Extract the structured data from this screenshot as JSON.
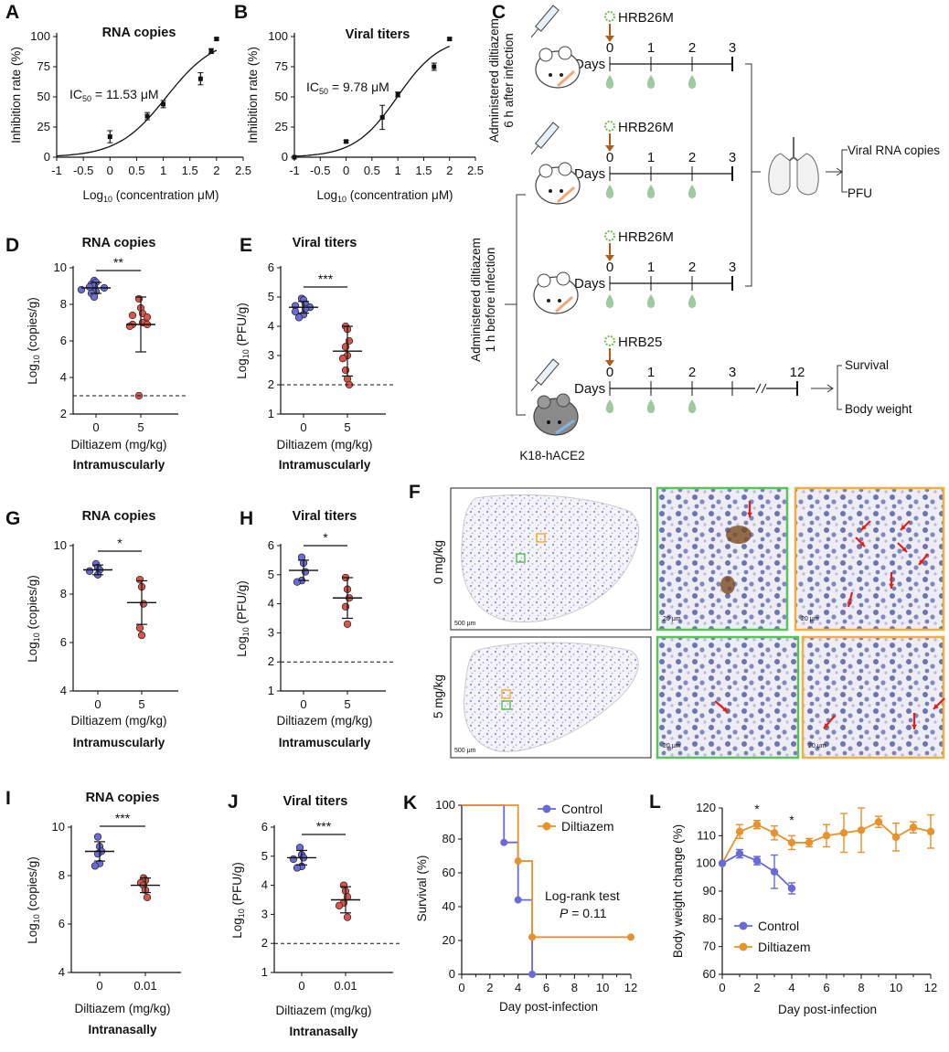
{
  "colors": {
    "blue": "#6a6ad8",
    "red": "#d9544a",
    "orange": "#e8922c",
    "virus_green": "#6cbf4e",
    "strain_gold": "#c4900c",
    "strain_teal": "#3bb0c8",
    "arrow_brown": "#b05a1e",
    "drop_green": "#9fcaa0",
    "frame_green": "#5cc25c",
    "frame_orange": "#f0b040"
  },
  "panel_labels": {
    "A": "A",
    "B": "B",
    "C": "C",
    "D": "D",
    "E": "E",
    "F": "F",
    "G": "G",
    "H": "H",
    "I": "I",
    "J": "J",
    "K": "K",
    "L": "L"
  },
  "chart_data": [
    {
      "id": "A",
      "type": "scatter",
      "title": "RNA copies",
      "ylabel": "Inhibition rate (%)",
      "xlabel": "Log10 (concentration μM)",
      "ylim": [
        0,
        100
      ],
      "xlim": [
        -1,
        2.5
      ],
      "xticks": [
        "-1",
        "-0.5",
        "0",
        "0.5",
        "1",
        "1.5",
        "2",
        "2.5"
      ],
      "yticks": [
        "0",
        "25",
        "50",
        "75",
        "100"
      ],
      "ic50_label": "IC50 = 11.53 μM",
      "points": [
        {
          "x": 0,
          "y": 17,
          "err": 5
        },
        {
          "x": 0.7,
          "y": 34,
          "err": 3
        },
        {
          "x": 1.0,
          "y": 44,
          "err": 3
        },
        {
          "x": 1.7,
          "y": 65,
          "err": 5
        },
        {
          "x": 1.9,
          "y": 88,
          "err": 2
        },
        {
          "x": 2.0,
          "y": 98,
          "err": 1
        }
      ]
    },
    {
      "id": "B",
      "type": "scatter",
      "title": "Viral titers",
      "ylabel": "Inhibition rate (%)",
      "xlabel": "Log10 (concentration μM)",
      "ylim": [
        0,
        100
      ],
      "xlim": [
        -1,
        2.5
      ],
      "xticks": [
        "-1",
        "-0.5",
        "0",
        "0.5",
        "1",
        "1.5",
        "2",
        "2.5"
      ],
      "yticks": [
        "0",
        "25",
        "50",
        "75",
        "100"
      ],
      "ic50_label": "IC50 = 9.78 μM",
      "points": [
        {
          "x": -1,
          "y": 0,
          "err": 0
        },
        {
          "x": 0,
          "y": 13,
          "err": 1
        },
        {
          "x": 0.7,
          "y": 33,
          "err": 10
        },
        {
          "x": 1.0,
          "y": 52,
          "err": 2
        },
        {
          "x": 1.7,
          "y": 75,
          "err": 3
        },
        {
          "x": 2.0,
          "y": 98,
          "err": 1
        }
      ]
    },
    {
      "id": "D",
      "type": "scatter",
      "title": "RNA copies",
      "ylabel": "Log10 (copies/g)",
      "xlabel": "Diltiazem (mg/kg)",
      "route": "Intramuscularly",
      "ylim": [
        2,
        10
      ],
      "categories": [
        "0",
        "5"
      ],
      "yticks": [
        "2",
        "4",
        "6",
        "8",
        "10"
      ],
      "detection_limit": 3,
      "significance": "**",
      "groups": [
        {
          "mean": 8.9,
          "sd": 0.3,
          "values": [
            9.3,
            9.2,
            9.1,
            9.0,
            8.95,
            8.9,
            8.8,
            8.7,
            8.6,
            8.4
          ]
        },
        {
          "mean": 6.9,
          "sd": 1.5,
          "values": [
            8.3,
            7.8,
            7.5,
            7.4,
            7.3,
            7.0,
            6.9,
            6.9,
            6.8,
            3.0
          ]
        }
      ]
    },
    {
      "id": "E",
      "type": "scatter",
      "title": "Viral titers",
      "ylabel": "Log10 (PFU/g)",
      "xlabel": "Diltiazem (mg/kg)",
      "route": "Intramuscularly",
      "ylim": [
        1,
        6
      ],
      "categories": [
        "0",
        "5"
      ],
      "yticks": [
        "1",
        "2",
        "3",
        "4",
        "5",
        "6"
      ],
      "detection_limit": 2,
      "significance": "***",
      "groups": [
        {
          "mean": 4.65,
          "sd": 0.2,
          "values": [
            4.95,
            4.9,
            4.75,
            4.7,
            4.65,
            4.6,
            4.5,
            4.4,
            4.3
          ]
        },
        {
          "mean": 3.15,
          "sd": 0.85,
          "values": [
            4.0,
            3.9,
            3.5,
            3.3,
            3.0,
            2.9,
            2.5,
            2.2,
            2.0
          ]
        }
      ]
    },
    {
      "id": "G",
      "type": "scatter",
      "title": "RNA copies",
      "ylabel": "Log10 (copies/g)",
      "xlabel": "Diltiazem (mg/kg)",
      "route": "Intramuscularly",
      "ylim": [
        4,
        10
      ],
      "categories": [
        "0",
        "5"
      ],
      "yticks": [
        "4",
        "6",
        "8",
        "10"
      ],
      "significance": "*",
      "groups": [
        {
          "mean": 9.0,
          "sd": 0.2,
          "values": [
            9.25,
            9.1,
            9.0,
            8.95,
            8.8
          ]
        },
        {
          "mean": 7.65,
          "sd": 0.9,
          "values": [
            8.6,
            8.3,
            7.6,
            6.6,
            6.3
          ]
        }
      ]
    },
    {
      "id": "H",
      "type": "scatter",
      "title": "Viral titers",
      "ylabel": "Log10 (PFU/g)",
      "xlabel": "Diltiazem (mg/kg)",
      "route": "Intramuscularly",
      "ylim": [
        1,
        6
      ],
      "categories": [
        "0",
        "5"
      ],
      "yticks": [
        "1",
        "2",
        "3",
        "4",
        "5",
        "6"
      ],
      "detection_limit": 2,
      "significance": "*",
      "groups": [
        {
          "mean": 5.15,
          "sd": 0.35,
          "values": [
            5.6,
            5.4,
            5.1,
            4.8,
            4.75
          ]
        },
        {
          "mean": 4.2,
          "sd": 0.7,
          "values": [
            4.9,
            4.5,
            4.2,
            3.9,
            3.3
          ]
        }
      ]
    },
    {
      "id": "I",
      "type": "scatter",
      "title": "RNA copies",
      "ylabel": "Log10 (copies/g)",
      "xlabel": "Diltiazem (mg/kg)",
      "route": "Intranasally",
      "ylim": [
        4,
        10
      ],
      "categories": [
        "0",
        "0.01"
      ],
      "yticks": [
        "4",
        "6",
        "8",
        "10"
      ],
      "significance": "***",
      "groups": [
        {
          "mean": 9.0,
          "sd": 0.4,
          "values": [
            9.6,
            9.2,
            9.0,
            8.9,
            8.5,
            8.4
          ]
        },
        {
          "mean": 7.6,
          "sd": 0.3,
          "values": [
            7.9,
            7.8,
            7.7,
            7.6,
            7.4,
            7.1
          ]
        }
      ]
    },
    {
      "id": "J",
      "type": "scatter",
      "title": "Viral titers",
      "ylabel": "Log10 (PFU/g)",
      "xlabel": "Diltiazem (mg/kg)",
      "route": "Intranasally",
      "ylim": [
        1,
        6
      ],
      "categories": [
        "0",
        "0.01"
      ],
      "yticks": [
        "1",
        "2",
        "3",
        "4",
        "5",
        "6"
      ],
      "detection_limit": 2,
      "significance": "***",
      "groups": [
        {
          "mean": 4.95,
          "sd": 0.25,
          "values": [
            5.3,
            5.05,
            4.95,
            4.9,
            4.65,
            4.6
          ]
        },
        {
          "mean": 3.5,
          "sd": 0.45,
          "values": [
            4.0,
            3.8,
            3.6,
            3.4,
            3.3,
            2.9
          ]
        }
      ]
    },
    {
      "id": "K",
      "type": "line",
      "subtype": "survival",
      "ylabel": "Survival (%)",
      "xlabel": "Day post-infection",
      "xlim": [
        0,
        12
      ],
      "ylim": [
        0,
        100
      ],
      "xticks": [
        "0",
        "2",
        "4",
        "6",
        "8",
        "10",
        "12"
      ],
      "yticks": [
        "0",
        "20",
        "40",
        "60",
        "80",
        "100"
      ],
      "test_label": "Log-rank test",
      "p_label": "P = 0.11",
      "series": [
        {
          "name": "Control",
          "points": [
            [
              3,
              78
            ],
            [
              4,
              44
            ],
            [
              5,
              0
            ]
          ],
          "steps": [
            [
              0,
              100
            ],
            [
              3,
              100
            ],
            [
              3,
              78
            ],
            [
              4,
              78
            ],
            [
              4,
              44
            ],
            [
              5,
              44
            ],
            [
              5,
              0
            ]
          ]
        },
        {
          "name": "Diltiazem",
          "points": [
            [
              4,
              67
            ],
            [
              5,
              22
            ],
            [
              12,
              22
            ]
          ],
          "steps": [
            [
              0,
              100
            ],
            [
              4,
              100
            ],
            [
              4,
              67
            ],
            [
              5,
              67
            ],
            [
              5,
              22
            ],
            [
              12,
              22
            ]
          ]
        }
      ]
    },
    {
      "id": "L",
      "type": "line",
      "ylabel": "Body weight change (%)",
      "xlabel": "Day post-infection",
      "xlim": [
        0,
        12
      ],
      "ylim": [
        60,
        120
      ],
      "xticks": [
        "0",
        "2",
        "4",
        "6",
        "8",
        "10",
        "12"
      ],
      "yticks": [
        "60",
        "70",
        "80",
        "90",
        "100",
        "110",
        "120"
      ],
      "significance_days": [
        2,
        4
      ],
      "significance": "*",
      "series": [
        {
          "name": "Control",
          "points": [
            [
              0,
              100,
              0
            ],
            [
              1,
              103.5,
              1.5
            ],
            [
              2,
              101,
              1.5
            ],
            [
              3,
              97,
              6
            ],
            [
              4,
              91,
              2
            ]
          ]
        },
        {
          "name": "Diltiazem",
          "points": [
            [
              0,
              100,
              0
            ],
            [
              1,
              111.5,
              2.5
            ],
            [
              2,
              114,
              1.5
            ],
            [
              3,
              111,
              2.5
            ],
            [
              4,
              107.5,
              2.5
            ],
            [
              5,
              107.5,
              1.5
            ],
            [
              6,
              110,
              4
            ],
            [
              7,
              111,
              7
            ],
            [
              8,
              112,
              8
            ],
            [
              9,
              115,
              2
            ],
            [
              10,
              109.5,
              5
            ],
            [
              11,
              113,
              2
            ],
            [
              12,
              111.5,
              6
            ]
          ]
        }
      ]
    }
  ],
  "schematic": {
    "group1_label_a": "Administered diltiazem",
    "group1_label_b": "6 h after infection",
    "group2_label_a": "Administered diltiazem",
    "group2_label_b": "1 h before infection",
    "strain_1": "HRB26M",
    "strain_2": "HRB25",
    "days_label": "Days",
    "day_ticks": [
      "0",
      "1",
      "2",
      "3"
    ],
    "day_12": "12",
    "readout_1": "Viral RNA copies",
    "readout_2": "PFU",
    "readout_3": "Survival",
    "readout_4": "Body weight",
    "mouse_strain": "K18-hACE2"
  },
  "histology": {
    "row_1": "0 mg/kg",
    "row_2": "5 mg/kg",
    "scale_big": "500 μm",
    "scale_small": "20 μm"
  }
}
